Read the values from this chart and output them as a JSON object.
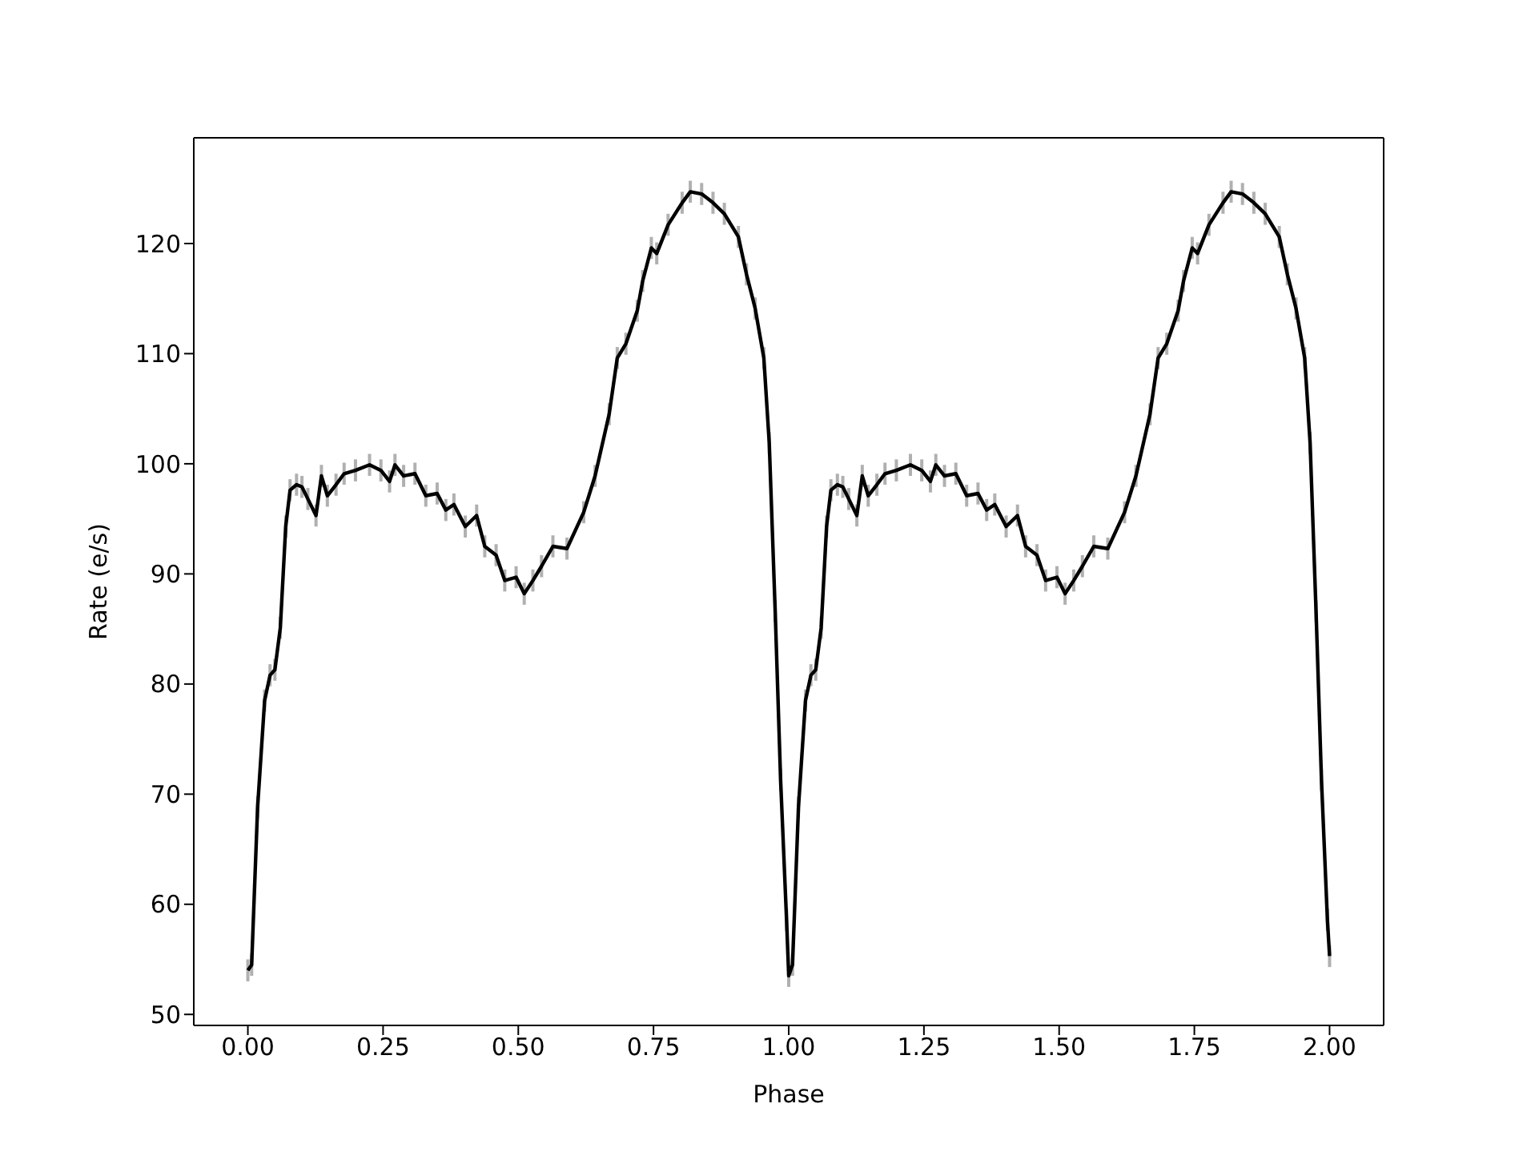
{
  "chart_data": {
    "type": "line",
    "xlabel": "Phase",
    "ylabel": "Rate (e/s)",
    "marker": "none",
    "line_style": "solid",
    "legend": false,
    "xlim": [
      -0.1,
      2.1
    ],
    "ylim": [
      49,
      129.6
    ],
    "xticks": [
      {
        "value": 0,
        "label": "0.00"
      },
      {
        "value": 0.25,
        "label": "0.25"
      },
      {
        "value": 0.5,
        "label": "0.50"
      },
      {
        "value": 0.75,
        "label": "0.75"
      },
      {
        "value": 1,
        "label": "1.00"
      },
      {
        "value": 1.25,
        "label": "1.25"
      },
      {
        "value": 1.5,
        "label": "1.50"
      },
      {
        "value": 1.75,
        "label": "1.75"
      },
      {
        "value": 2,
        "label": "2.00"
      }
    ],
    "yticks": [
      50,
      60,
      70,
      80,
      90,
      100,
      110,
      120
    ],
    "series": [
      {
        "color": "#000000",
        "x": [
          0,
          0.007,
          0.018,
          0.031,
          0.041,
          0.05,
          0.06,
          0.07,
          0.078,
          0.09,
          0.1,
          0.111,
          0.126,
          0.136,
          0.147,
          0.163,
          0.178,
          0.199,
          0.225,
          0.246,
          0.262,
          0.272,
          0.288,
          0.309,
          0.329,
          0.35,
          0.366,
          0.381,
          0.402,
          0.423,
          0.438,
          0.459,
          0.475,
          0.496,
          0.511,
          0.527,
          0.543,
          0.564,
          0.59,
          0.621,
          0.642,
          0.668,
          0.683,
          0.699,
          0.72,
          0.73,
          0.746,
          0.756,
          0.777,
          0.803,
          0.818,
          0.839,
          0.86,
          0.881,
          0.907,
          0.922,
          0.938,
          0.954,
          0.964,
          0.975,
          0.985,
          0.996,
          1.0,
          1.007,
          1.018,
          1.031,
          1.041,
          1.05,
          1.06,
          1.07,
          1.078,
          1.09,
          1.1,
          1.111,
          1.126,
          1.136,
          1.147,
          1.163,
          1.178,
          1.199,
          1.225,
          1.246,
          1.262,
          1.272,
          1.288,
          1.309,
          1.329,
          1.35,
          1.366,
          1.381,
          1.402,
          1.423,
          1.438,
          1.459,
          1.475,
          1.496,
          1.511,
          1.527,
          1.543,
          1.564,
          1.59,
          1.621,
          1.642,
          1.668,
          1.683,
          1.699,
          1.72,
          1.73,
          1.746,
          1.756,
          1.777,
          1.803,
          1.818,
          1.839,
          1.86,
          1.881,
          1.907,
          1.922,
          1.938,
          1.954,
          1.964,
          1.975,
          1.985,
          1.996,
          2.0
        ],
        "values": [
          54.0,
          54.5,
          68.8,
          78.5,
          80.8,
          81.3,
          85.1,
          94.3,
          97.6,
          98.1,
          97.9,
          96.8,
          95.3,
          98.9,
          97.1,
          98.1,
          99.1,
          99.4,
          99.9,
          99.4,
          98.4,
          99.9,
          98.9,
          99.1,
          97.1,
          97.3,
          95.8,
          96.3,
          94.3,
          95.3,
          92.5,
          91.7,
          89.4,
          89.7,
          88.2,
          89.4,
          90.7,
          92.5,
          92.3,
          95.6,
          98.9,
          104.5,
          109.6,
          110.9,
          113.9,
          116.6,
          119.6,
          119.1,
          121.7,
          123.7,
          124.7,
          124.5,
          123.7,
          122.7,
          120.6,
          117.2,
          114.1,
          109.6,
          101.9,
          86.6,
          71.3,
          58.6,
          53.5,
          54.5,
          68.8,
          78.5,
          80.8,
          81.3,
          85.1,
          94.3,
          97.6,
          98.1,
          97.9,
          96.8,
          95.3,
          98.9,
          97.1,
          98.1,
          99.1,
          99.4,
          99.9,
          99.4,
          98.4,
          99.9,
          98.9,
          99.1,
          97.1,
          97.3,
          95.8,
          96.3,
          94.3,
          95.3,
          92.5,
          91.7,
          89.4,
          89.7,
          88.2,
          89.4,
          90.7,
          92.5,
          92.3,
          95.6,
          98.9,
          104.5,
          109.6,
          110.9,
          113.9,
          116.6,
          119.6,
          119.1,
          121.7,
          123.7,
          124.7,
          124.5,
          123.7,
          122.7,
          120.6,
          117.2,
          114.1,
          109.6,
          101.9,
          86.6,
          71.3,
          58.6,
          55.3
        ],
        "errors": [
          1,
          1,
          1,
          1,
          1,
          1,
          1,
          1,
          1,
          1,
          1,
          1,
          1,
          1,
          1,
          1,
          1,
          1,
          1,
          1,
          1,
          1,
          1,
          1,
          1,
          1,
          1,
          1,
          1,
          1,
          1,
          1,
          1,
          1,
          1,
          1,
          1,
          1,
          1,
          1,
          1,
          1,
          1,
          1,
          1,
          1,
          1,
          1,
          1,
          1,
          1,
          1,
          1,
          1,
          1,
          1,
          1,
          1,
          1,
          1,
          1,
          1,
          1,
          1,
          1,
          1,
          1,
          1,
          1,
          1,
          1,
          1,
          1,
          1,
          1,
          1,
          1,
          1,
          1,
          1,
          1,
          1,
          1,
          1,
          1,
          1,
          1,
          1,
          1,
          1,
          1,
          1,
          1,
          1,
          1,
          1,
          1,
          1,
          1,
          1,
          1,
          1,
          1,
          1,
          1,
          1,
          1,
          1,
          1,
          1,
          1,
          1,
          1,
          1,
          1,
          1,
          1,
          1,
          1,
          1,
          1,
          1,
          1,
          1,
          1
        ]
      }
    ]
  }
}
